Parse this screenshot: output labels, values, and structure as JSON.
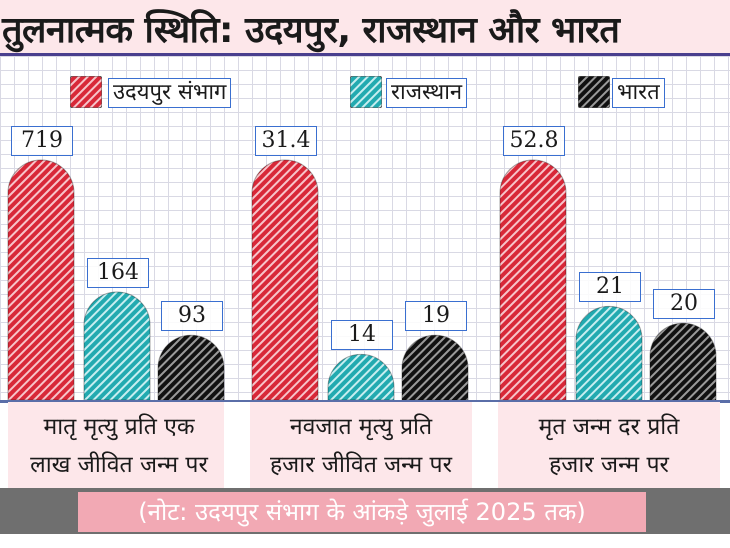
{
  "title": "तुलनात्मक स्थिति: उदयपुर, राजस्थान और भारत",
  "colors": {
    "udaipur": "#e0313f",
    "rajasthan": "#2bb3b8",
    "bharat": "#1a1a1a"
  },
  "chart_data": {
    "type": "bar",
    "title": "तुलनात्मक स्थिति: उदयपुर, राजस्थान और भारत",
    "legend": [
      "उदयपुर संभाग",
      "राजस्थान",
      "भारत"
    ],
    "categories": [
      [
        "मातृ मृत्यु प्रति एक",
        "लाख जीवित जन्म पर"
      ],
      [
        "नवजात मृत्यु प्रति",
        "हजार जीवित जन्म पर"
      ],
      [
        "मृत जन्म दर प्रति",
        "हजार जन्म पर"
      ]
    ],
    "series": [
      {
        "name": "उदयपुर संभाग",
        "values": [
          "719",
          "31.4",
          "52.8"
        ]
      },
      {
        "name": "राजस्थान",
        "values": [
          "164",
          "14",
          "21"
        ]
      },
      {
        "name": "भारत",
        "values": [
          "93",
          "19",
          "20"
        ]
      }
    ],
    "fractions": [
      [
        1.0,
        0.45,
        0.27
      ],
      [
        1.0,
        0.19,
        0.27
      ],
      [
        1.0,
        0.39,
        0.32
      ]
    ]
  },
  "footnote": "(नोट: उदयपुर संभाग के आंकड़े जुलाई 2025 तक)"
}
